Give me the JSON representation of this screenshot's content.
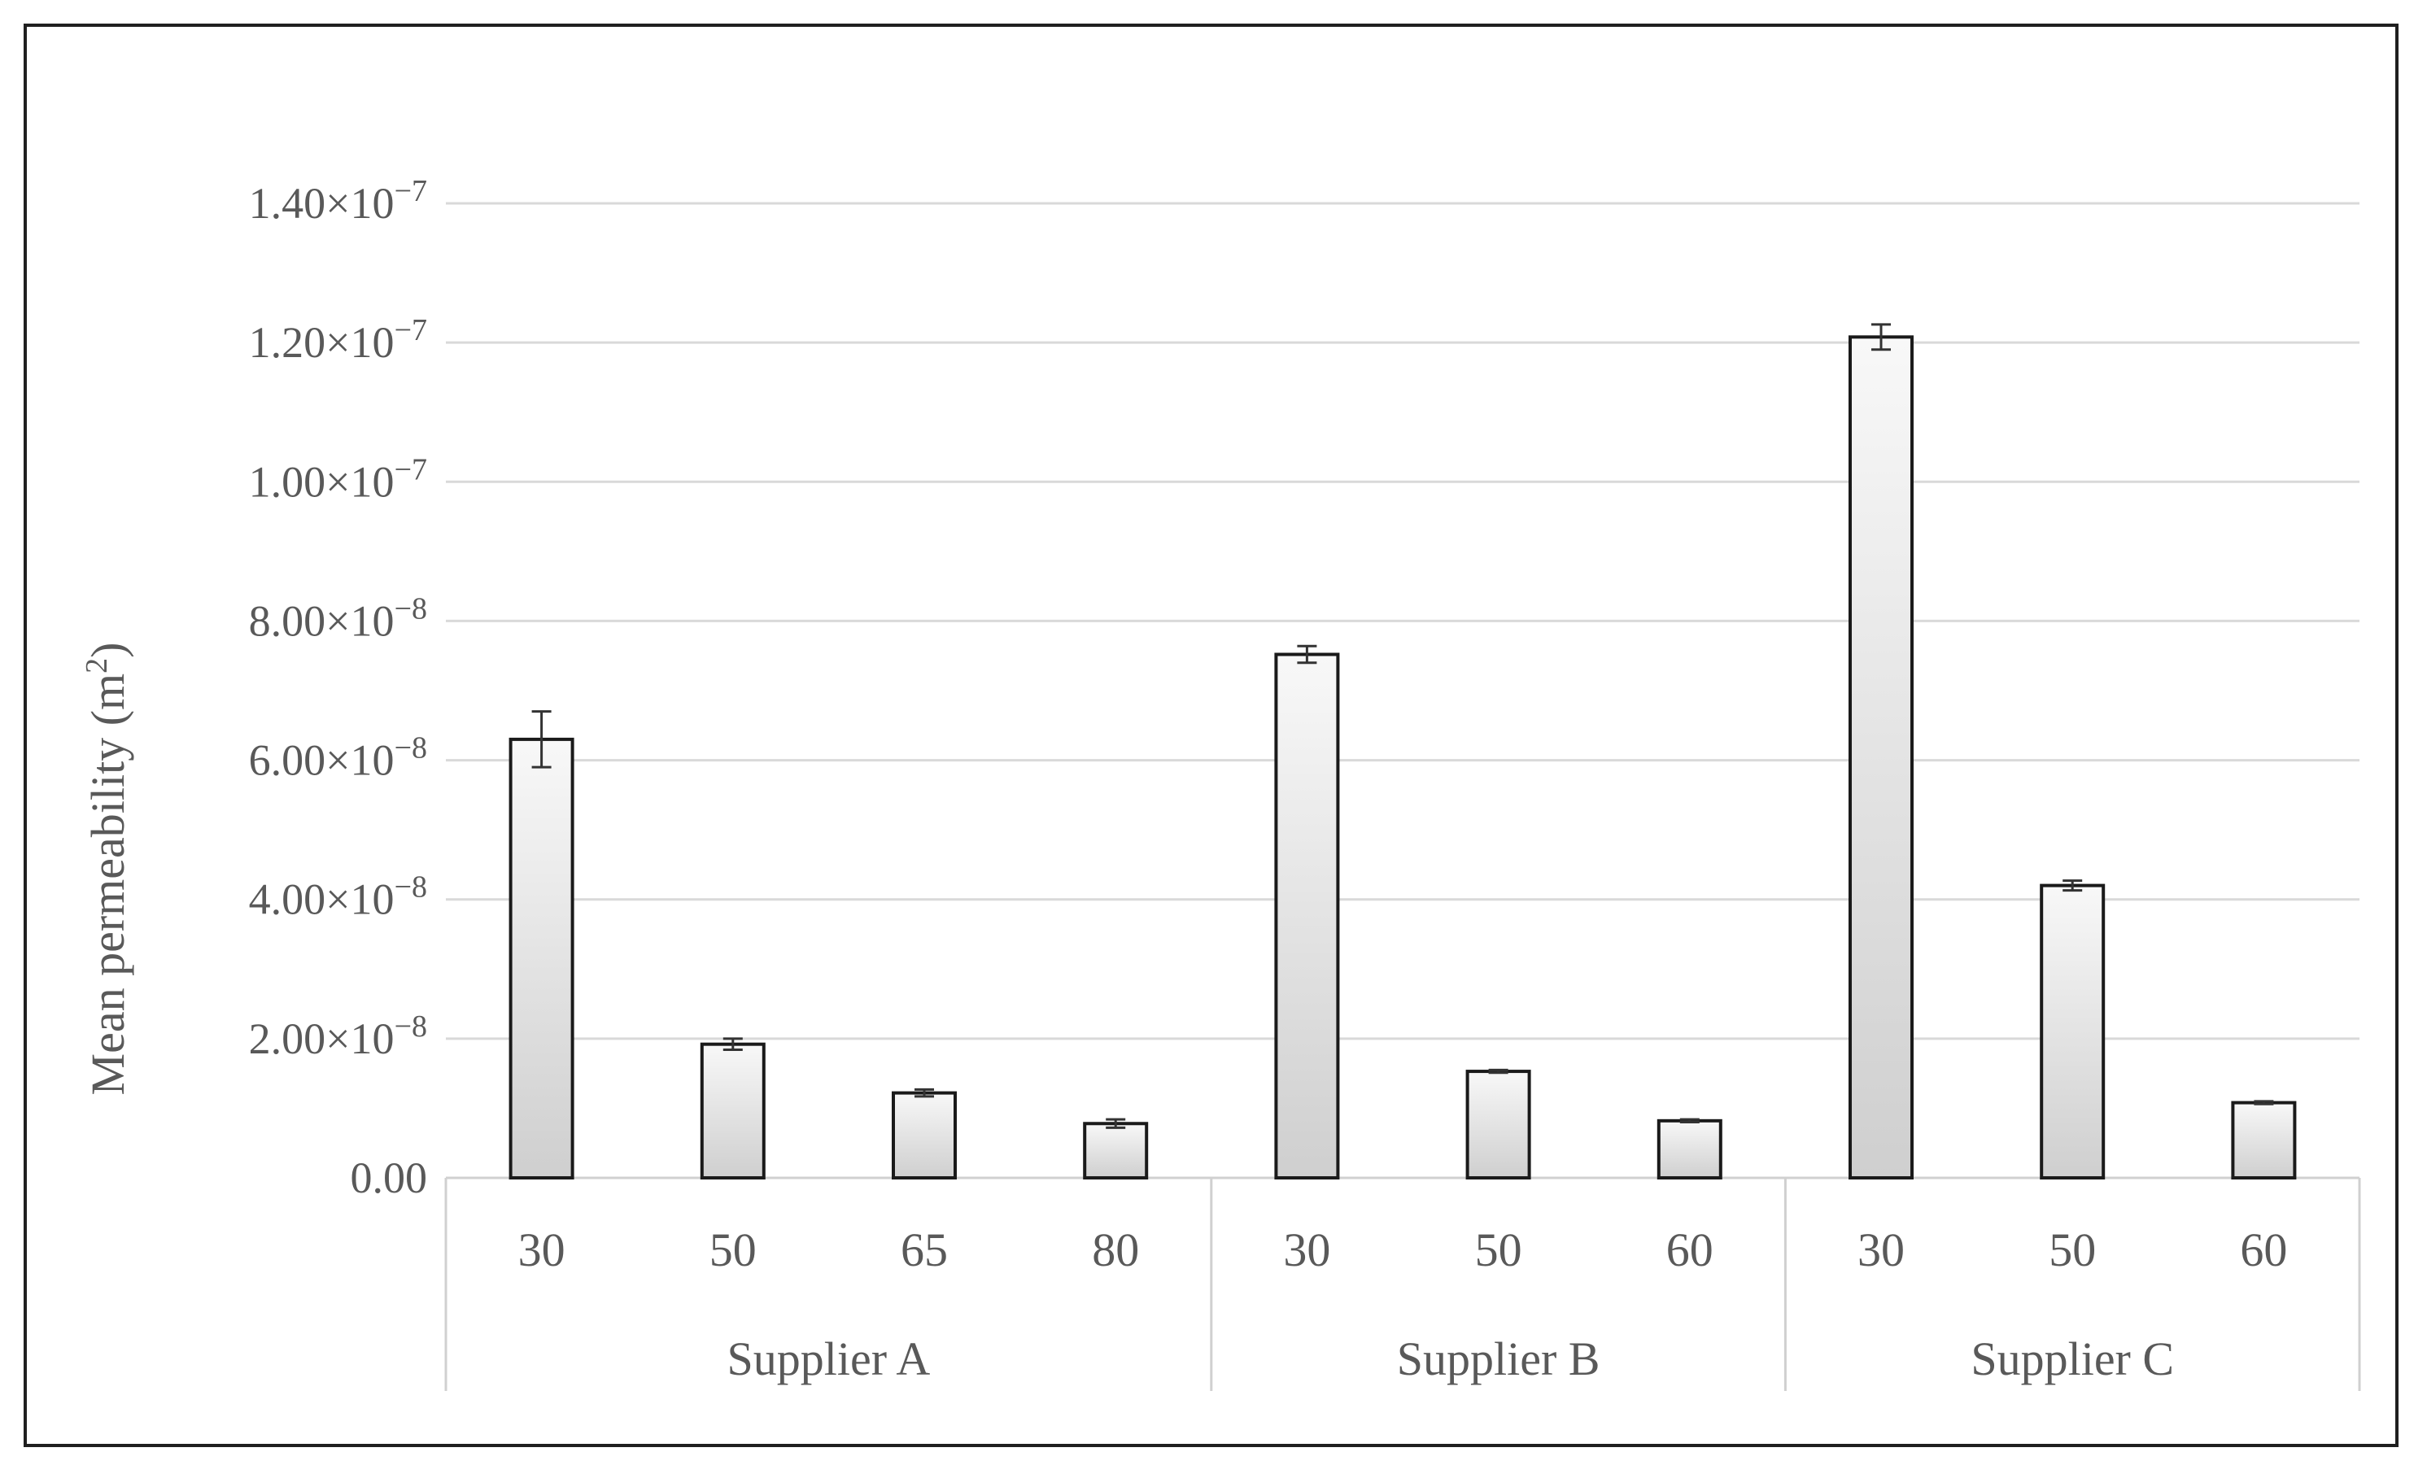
{
  "chart_data": {
    "type": "bar",
    "ylabel": {
      "main": "Mean permeability (m",
      "sup": "2",
      "close": ")"
    },
    "ylim": [
      0,
      1.4e-07
    ],
    "grid": true,
    "yticks": [
      {
        "value": 0,
        "mantissa": "0.00",
        "exponent": ""
      },
      {
        "value": 2e-08,
        "mantissa": "2.00×10",
        "exponent": "−8"
      },
      {
        "value": 4e-08,
        "mantissa": "4.00×10",
        "exponent": "−8"
      },
      {
        "value": 6e-08,
        "mantissa": "6.00×10",
        "exponent": "−8"
      },
      {
        "value": 8e-08,
        "mantissa": "8.00×10",
        "exponent": "−8"
      },
      {
        "value": 1e-07,
        "mantissa": "1.00×10",
        "exponent": "−7"
      },
      {
        "value": 1.2e-07,
        "mantissa": "1.20×10",
        "exponent": "−7"
      },
      {
        "value": 1.4e-07,
        "mantissa": "1.40×10",
        "exponent": "−7"
      }
    ],
    "groups": [
      {
        "name": "Supplier A",
        "categories": [
          "30",
          "50",
          "65",
          "80"
        ],
        "values": [
          6.3e-08,
          1.92e-08,
          1.22e-08,
          7.8e-09
        ],
        "errors": [
          4e-09,
          8e-10,
          5e-10,
          6e-10
        ]
      },
      {
        "name": "Supplier B",
        "categories": [
          "30",
          "50",
          "60"
        ],
        "values": [
          7.52e-08,
          1.53e-08,
          8.2e-09
        ],
        "errors": [
          1.2e-09,
          2e-10,
          2e-10
        ]
      },
      {
        "name": "Supplier C",
        "categories": [
          "30",
          "50",
          "60"
        ],
        "values": [
          1.208e-07,
          4.2e-08,
          1.08e-08
        ],
        "errors": [
          1.8e-09,
          7e-10,
          2e-10
        ]
      }
    ]
  }
}
